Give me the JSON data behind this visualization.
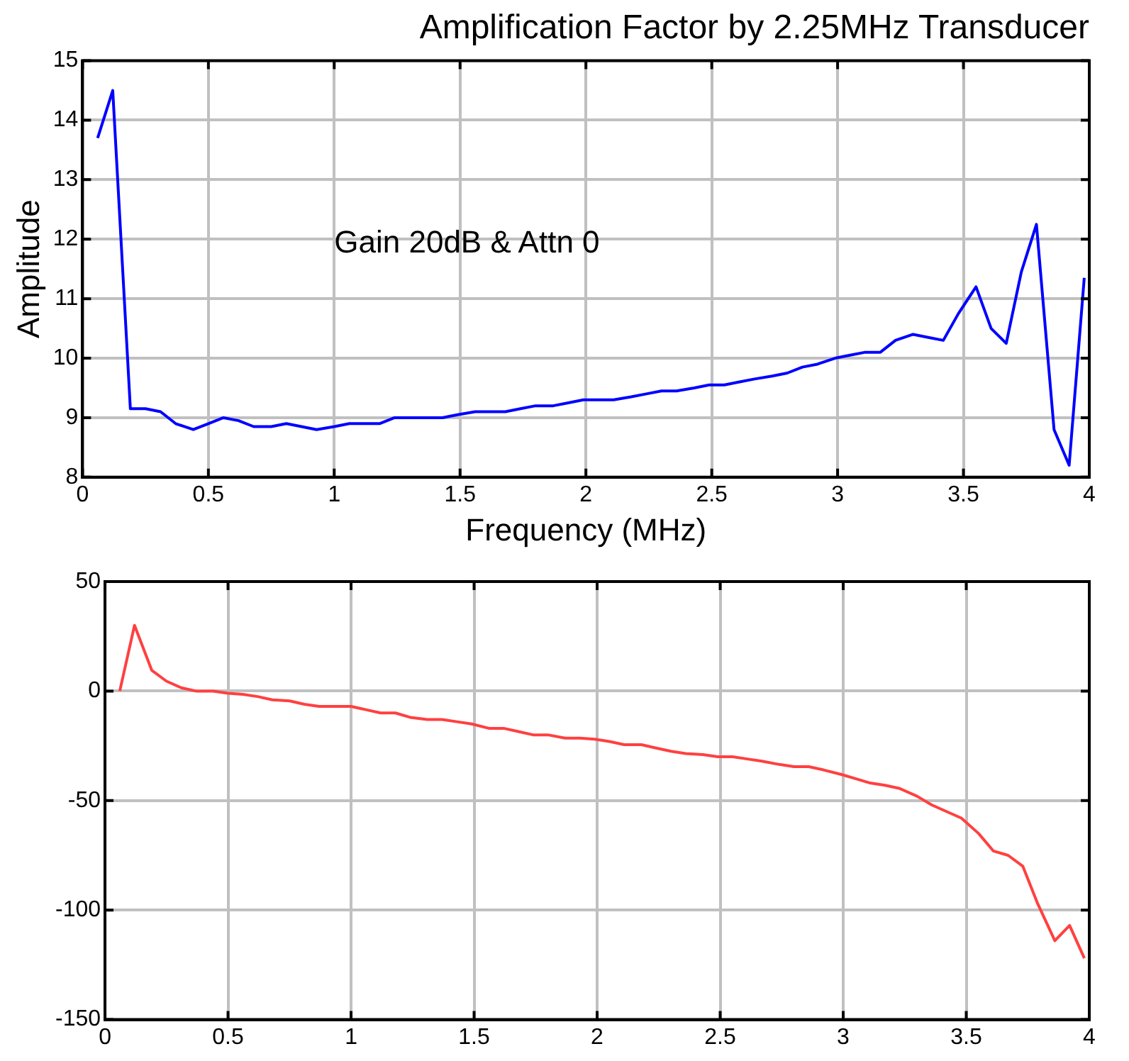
{
  "chart_data": [
    {
      "type": "line",
      "title": "Amplification Factor by 2.25MHz Transducer",
      "xlabel": "Frequency (MHz)",
      "ylabel": "Amplitude",
      "annotations": [
        "Gain 20dB & Attn 0"
      ],
      "x": [
        0.06,
        0.12,
        0.19,
        0.25,
        0.31,
        0.37,
        0.44,
        0.5,
        0.56,
        0.62,
        0.68,
        0.75,
        0.81,
        0.87,
        0.93,
        1.0,
        1.06,
        1.12,
        1.18,
        1.24,
        1.31,
        1.37,
        1.43,
        1.49,
        1.56,
        1.62,
        1.68,
        1.74,
        1.8,
        1.87,
        1.93,
        1.99,
        2.05,
        2.11,
        2.18,
        2.24,
        2.3,
        2.36,
        2.43,
        2.49,
        2.55,
        2.61,
        2.67,
        2.74,
        2.8,
        2.86,
        2.92,
        2.99,
        3.05,
        3.11,
        3.17,
        3.23,
        3.3,
        3.36,
        3.42,
        3.48,
        3.55,
        3.61,
        3.67,
        3.73,
        3.79,
        3.86,
        3.92,
        3.98
      ],
      "series": [
        {
          "color": "#0000ff",
          "values": [
            13.7,
            14.5,
            9.15,
            9.15,
            9.1,
            8.9,
            8.8,
            8.9,
            9.0,
            8.95,
            8.85,
            8.85,
            8.9,
            8.85,
            8.8,
            8.85,
            8.9,
            8.9,
            8.9,
            9.0,
            9.0,
            9.0,
            9.0,
            9.05,
            9.1,
            9.1,
            9.1,
            9.15,
            9.2,
            9.2,
            9.25,
            9.3,
            9.3,
            9.3,
            9.35,
            9.4,
            9.45,
            9.45,
            9.5,
            9.55,
            9.55,
            9.6,
            9.65,
            9.7,
            9.75,
            9.85,
            9.9,
            10.0,
            10.05,
            10.1,
            10.1,
            10.3,
            10.4,
            10.35,
            10.3,
            10.75,
            11.2,
            10.5,
            10.25,
            11.45,
            12.25,
            8.8,
            8.2,
            11.35
          ]
        }
      ],
      "xlim": [
        0,
        4
      ],
      "xticks": [
        0,
        0.5,
        1,
        1.5,
        2,
        2.5,
        3,
        3.5,
        4
      ],
      "ylim": [
        8,
        15
      ],
      "yticks": [
        8,
        9,
        10,
        11,
        12,
        13,
        14,
        15
      ],
      "grid": true,
      "marker": "none"
    },
    {
      "type": "line",
      "x": [
        0.06,
        0.12,
        0.19,
        0.25,
        0.31,
        0.37,
        0.44,
        0.5,
        0.56,
        0.62,
        0.68,
        0.75,
        0.81,
        0.87,
        0.93,
        1.0,
        1.06,
        1.12,
        1.18,
        1.24,
        1.31,
        1.37,
        1.43,
        1.49,
        1.56,
        1.62,
        1.68,
        1.74,
        1.8,
        1.87,
        1.93,
        1.99,
        2.05,
        2.11,
        2.18,
        2.24,
        2.3,
        2.36,
        2.43,
        2.49,
        2.55,
        2.61,
        2.67,
        2.74,
        2.8,
        2.86,
        2.92,
        2.99,
        3.05,
        3.11,
        3.17,
        3.23,
        3.3,
        3.36,
        3.42,
        3.48,
        3.55,
        3.61,
        3.67,
        3.73,
        3.79,
        3.86,
        3.92,
        3.98
      ],
      "series": [
        {
          "color": "#ff4040",
          "values": [
            0,
            30,
            9.5,
            4.5,
            1.5,
            0,
            0,
            -1,
            -1.5,
            -2.5,
            -4,
            -4.5,
            -6,
            -7,
            -7,
            -7,
            -8.5,
            -10,
            -10,
            -12,
            -13,
            -13,
            -14,
            -15,
            -17,
            -17,
            -18.5,
            -20,
            -20,
            -21.5,
            -21.5,
            -22,
            -23,
            -24.5,
            -24.5,
            -26,
            -27.5,
            -28.5,
            -29,
            -30,
            -30,
            -31,
            -32,
            -33.5,
            -34.5,
            -34.5,
            -36,
            -38,
            -40,
            -42,
            -43,
            -44.5,
            -48,
            -52,
            -55,
            -58,
            -65,
            -73,
            -75,
            -80,
            -97,
            -114,
            -107,
            -122
          ]
        }
      ],
      "xlim": [
        0,
        4
      ],
      "xticks": [
        0,
        0.5,
        1,
        1.5,
        2,
        2.5,
        3,
        3.5,
        4
      ],
      "ylim": [
        -150,
        50
      ],
      "yticks": [
        -150,
        -100,
        -50,
        0,
        50
      ],
      "grid": true,
      "marker": "none"
    }
  ]
}
